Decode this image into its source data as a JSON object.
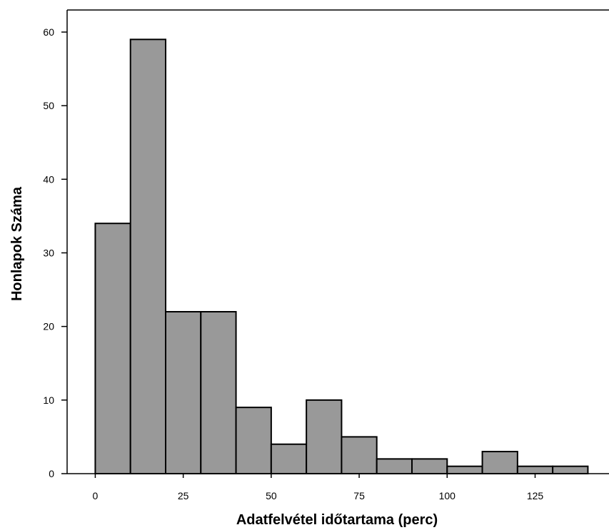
{
  "chart_data": {
    "type": "bar",
    "title": "",
    "xlabel": "Adatfelvétel időtartama (perc)",
    "ylabel": "Honlapok Száma",
    "bin_edges": [
      0,
      10,
      20,
      30,
      40,
      50,
      60,
      70,
      80,
      90,
      100,
      110,
      120,
      130,
      140
    ],
    "values": [
      34,
      59,
      22,
      22,
      9,
      4,
      10,
      5,
      2,
      2,
      1,
      3,
      1,
      1
    ],
    "xlim": [
      -8,
      146
    ],
    "ylim": [
      0,
      63
    ],
    "x_ticks": [
      0,
      25,
      50,
      75,
      100,
      125
    ],
    "y_ticks": [
      0,
      10,
      20,
      30,
      40,
      50,
      60
    ],
    "bar_color": "#999999",
    "bar_edge_color": "#000000",
    "grid": false,
    "legend": "none"
  }
}
